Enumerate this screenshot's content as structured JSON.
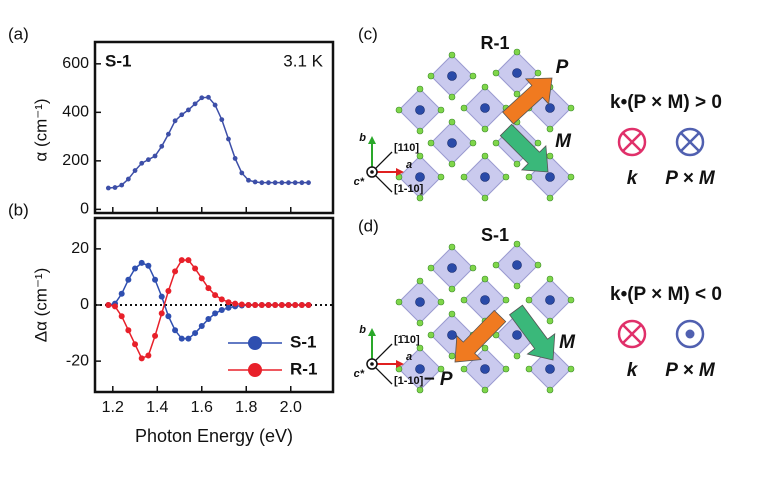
{
  "chart_data": [
    {
      "type": "line",
      "panel_label": "(a)",
      "annotations": [
        "S-1",
        "3.1 K"
      ],
      "ylabel": "α (cm⁻¹)",
      "x": [
        1.18,
        1.21,
        1.24,
        1.27,
        1.3,
        1.33,
        1.36,
        1.39,
        1.42,
        1.45,
        1.48,
        1.51,
        1.54,
        1.57,
        1.6,
        1.63,
        1.66,
        1.69,
        1.72,
        1.75,
        1.78,
        1.81,
        1.84,
        1.87,
        1.9,
        1.93,
        1.96,
        1.99,
        2.02,
        2.05,
        2.08
      ],
      "values": [
        88,
        90,
        100,
        125,
        160,
        190,
        205,
        220,
        260,
        310,
        365,
        390,
        410,
        435,
        460,
        462,
        430,
        370,
        290,
        210,
        150,
        120,
        113,
        110,
        110,
        110,
        110,
        110,
        110,
        110,
        110
      ],
      "color": "#3d4fa8",
      "xlim": [
        1.12,
        2.19
      ],
      "ylim": [
        -15,
        690
      ],
      "yticks": [
        0,
        200,
        400,
        600
      ]
    },
    {
      "type": "line",
      "panel_label": "(b)",
      "ylabel": "Δα (cm⁻¹)",
      "xlabel": "Photon Energy (eV)",
      "x": [
        1.18,
        1.21,
        1.24,
        1.27,
        1.3,
        1.33,
        1.36,
        1.39,
        1.42,
        1.45,
        1.48,
        1.51,
        1.54,
        1.57,
        1.6,
        1.63,
        1.66,
        1.69,
        1.72,
        1.75,
        1.78,
        1.81,
        1.84,
        1.87,
        1.9,
        1.93,
        1.96,
        1.99,
        2.02,
        2.05,
        2.08
      ],
      "series": [
        {
          "name": "S-1",
          "color": "#2f4fb0",
          "values": [
            0,
            0.5,
            4,
            9,
            13,
            15,
            14,
            9,
            3,
            -4,
            -9,
            -12,
            -12,
            -10,
            -7.5,
            -5,
            -3,
            -1.8,
            -1,
            -0.5,
            -0.2,
            0,
            0,
            0,
            0,
            0,
            0,
            0,
            0,
            0,
            0
          ]
        },
        {
          "name": "R-1",
          "color": "#e8202a",
          "values": [
            0,
            -0.5,
            -4,
            -9,
            -14,
            -19,
            -18,
            -11,
            -3,
            5,
            12,
            16,
            16,
            13,
            9.5,
            6,
            3.5,
            2,
            1,
            0.5,
            0.2,
            0,
            0,
            0,
            0,
            0,
            0,
            0,
            0,
            0,
            0
          ]
        }
      ],
      "xlim": [
        1.12,
        2.19
      ],
      "xticks": [
        1.2,
        1.4,
        1.6,
        1.8,
        {
          "value": 2,
          "label": "2.0"
        }
      ],
      "ylim": [
        -31,
        31
      ],
      "yticks": [
        -20,
        0,
        20
      ]
    }
  ],
  "diagrams": [
    {
      "panel_label": "(c)",
      "title": "R-1",
      "color": "#e8202a",
      "arrow_1": "P",
      "arrow_2": "M",
      "relation": "k•(P × M) > 0",
      "symbol_1": "k",
      "symbol_2": "P × M",
      "axis_b": "b",
      "axis_a": "a",
      "axis_c": "c*",
      "dir_1": "[110]",
      "dir_2": "[1-10]"
    },
    {
      "panel_label": "(d)",
      "title": "S-1",
      "color": "#3d4fa8",
      "arrow_1": "− P",
      "arrow_2": "M",
      "relation": "k•(P × M) < 0",
      "symbol_1": "k",
      "symbol_2": "P × M",
      "axis_b": "b",
      "axis_a": "a",
      "axis_c": "c*",
      "dir_1": "[1̄10]",
      "dir_2": "[1-10]"
    }
  ]
}
